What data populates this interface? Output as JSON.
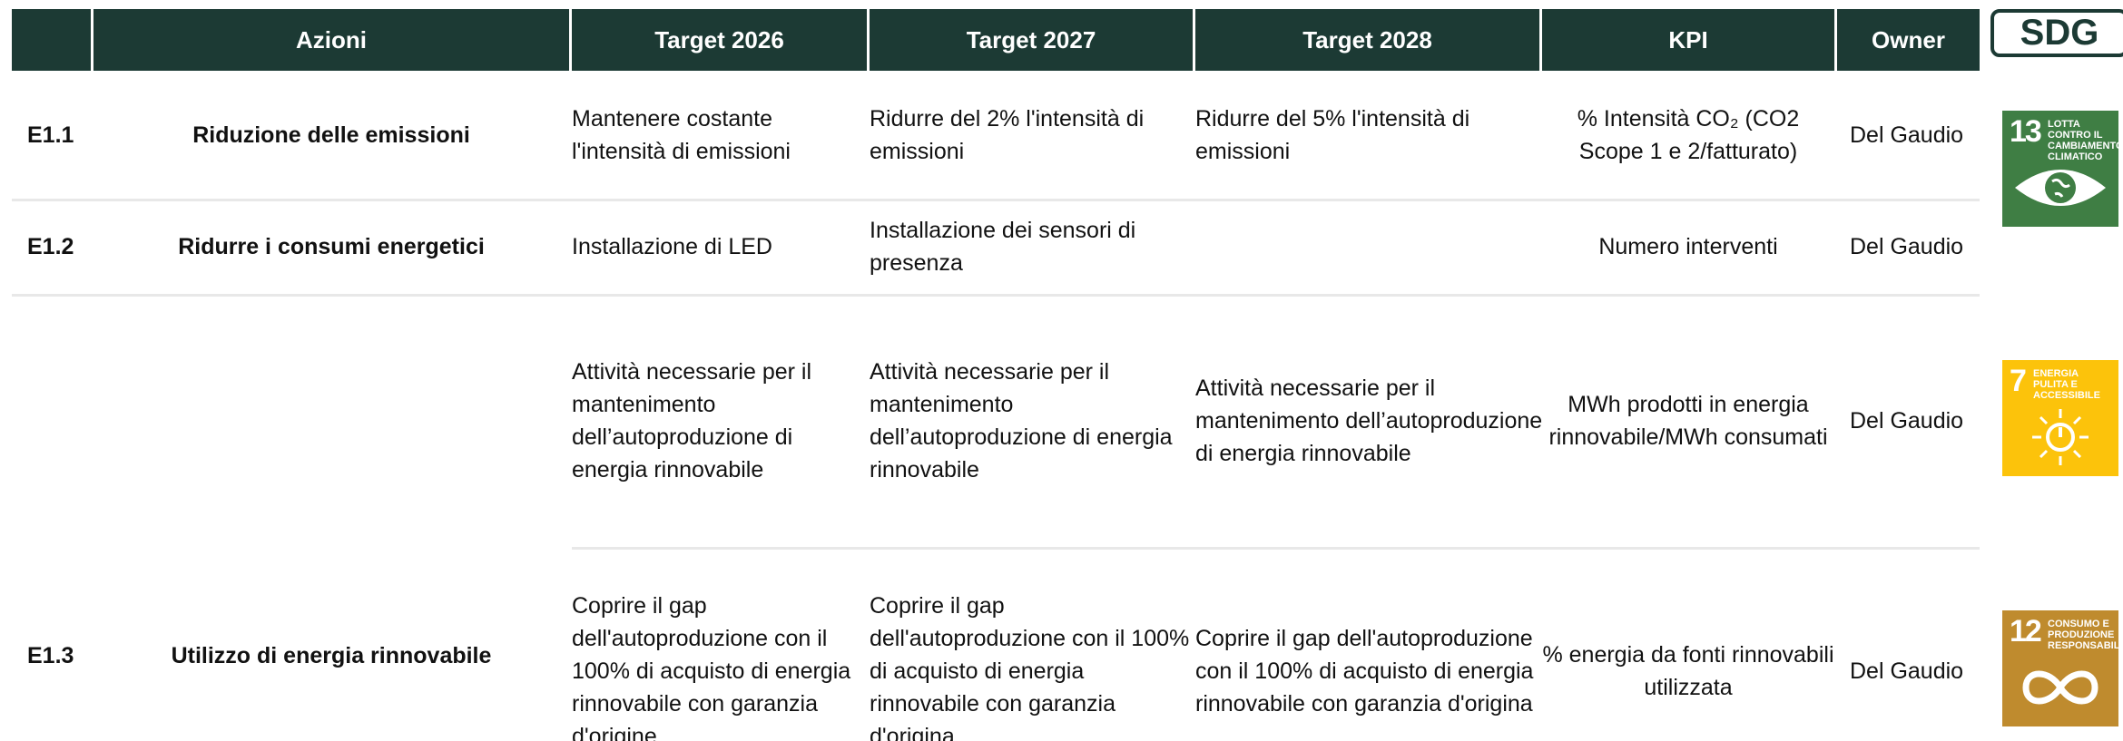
{
  "header": {
    "columns": [
      "Azioni",
      "Target 2026",
      "Target 2027",
      "Target 2028",
      "KPI",
      "Owner"
    ],
    "sdg": "SDG"
  },
  "rows": [
    {
      "code": "E1.1",
      "azione": "Riduzione delle emissioni",
      "items": [
        {
          "target_2026": "Mantenere costante l'intensità di emissioni",
          "target_2027": "Ridurre del 2% l'intensità di emissioni",
          "target_2028": "Ridurre del 5% l'intensità di emissioni",
          "kpi": "% Intensità CO₂ (CO2 Scope 1 e 2/fatturato)",
          "owner": "Del Gaudio",
          "sdg": {
            "number": "13",
            "label": "LOTTA CONTRO IL CAMBIAMENTO CLIMATICO"
          }
        }
      ]
    },
    {
      "code": "E1.2",
      "azione": "Ridurre i consumi energetici",
      "items": [
        {
          "target_2026": "Installazione di LED",
          "target_2027": "Installazione dei sensori di presenza",
          "kpi": "Numero interventi",
          "owner": "Del Gaudio"
        }
      ]
    },
    {
      "code": "E1.3",
      "azione": "Utilizzo di energia rinnovabile",
      "items": [
        {
          "target_2026": "Attività necessarie per il mantenimento dell’autoproduzione di energia rinnovabile",
          "target_2027": "Attività necessarie per il mantenimento dell’autoproduzione di energia rinnovabile",
          "target_2028": "Attività necessarie per il mantenimento dell’autoproduzione di energia rinnovabile",
          "kpi": "MWh prodotti in energia rinnovabile/MWh consumati",
          "owner": "Del Gaudio",
          "sdg": {
            "number": "7",
            "label": "ENERGIA PULITA E ACCESSIBILE"
          }
        },
        {
          "target_2026": "Coprire il gap dell'autoproduzione con il 100% di acquisto di energia rinnovabile con garanzia d'origine",
          "target_2027": "Coprire il gap dell'autoproduzione con il 100% di acquisto di energia rinnovabile con garanzia d'origina",
          "target_2028": "Coprire il gap dell'autoproduzione con il 100% di acquisto di energia rinnovabile con garanzia d'origina",
          "kpi": "% energia da fonti rinnovabili utilizzata",
          "owner": "Del Gaudio",
          "sdg": {
            "number": "12",
            "label": "CONSUMO E PRODUZIONE RESPONSABILI"
          }
        }
      ]
    }
  ]
}
